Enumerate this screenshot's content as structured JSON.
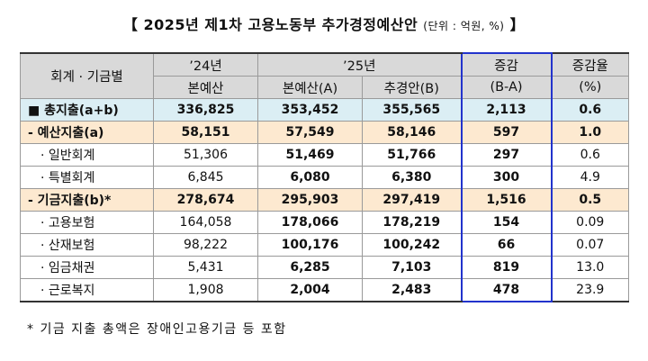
{
  "title": {
    "bracket_left": "【",
    "text": "2025년 제1차 고용노동부 추가경정예산안",
    "unit": "(단위 : 억원, %)",
    "bracket_right": "】"
  },
  "headers": {
    "category": "회계 · 기금별",
    "year24": "’24년",
    "year24_sub": "본예산",
    "year25": "’25년",
    "year25_sub_a": "본예산(A)",
    "year25_sub_b": "추경안(B)",
    "change": "증감",
    "change_sub": "(B-A)",
    "rate": "증감율",
    "rate_sub": "(%)"
  },
  "rows": [
    {
      "label": "■ 총지출(a+b)",
      "type": "total",
      "v24": "336,825",
      "v25a": "353,452",
      "v25b": "355,565",
      "diff": "2,113",
      "rate": "0.6"
    },
    {
      "label": "- 예산지출(a)",
      "type": "sub",
      "v24": "58,151",
      "v25a": "57,549",
      "v25b": "58,146",
      "diff": "597",
      "rate": "1.0"
    },
    {
      "label": "· 일반회계",
      "type": "item",
      "v24": "51,306",
      "v25a": "51,469",
      "v25b": "51,766",
      "diff": "297",
      "rate": "0.6"
    },
    {
      "label": "· 특별회계",
      "type": "item",
      "v24": "6,845",
      "v25a": "6,080",
      "v25b": "6,380",
      "diff": "300",
      "rate": "4.9"
    },
    {
      "label": "- 기금지출(b)*",
      "type": "sub",
      "v24": "278,674",
      "v25a": "295,903",
      "v25b": "297,419",
      "diff": "1,516",
      "rate": "0.5"
    },
    {
      "label": "· 고용보험",
      "type": "item",
      "v24": "164,058",
      "v25a": "178,066",
      "v25b": "178,219",
      "diff": "154",
      "rate": "0.09"
    },
    {
      "label": "· 산재보험",
      "type": "item",
      "v24": "98,222",
      "v25a": "100,176",
      "v25b": "100,242",
      "diff": "66",
      "rate": "0.07"
    },
    {
      "label": "· 임금채권",
      "type": "item",
      "v24": "5,431",
      "v25a": "6,285",
      "v25b": "7,103",
      "diff": "819",
      "rate": "13.0"
    },
    {
      "label": "· 근로복지",
      "type": "item",
      "v24": "1,908",
      "v25a": "2,004",
      "v25b": "2,483",
      "diff": "478",
      "rate": "23.9"
    }
  ],
  "footnote": "* 기금 지출 총액은 장애인고용기금 등 포함"
}
